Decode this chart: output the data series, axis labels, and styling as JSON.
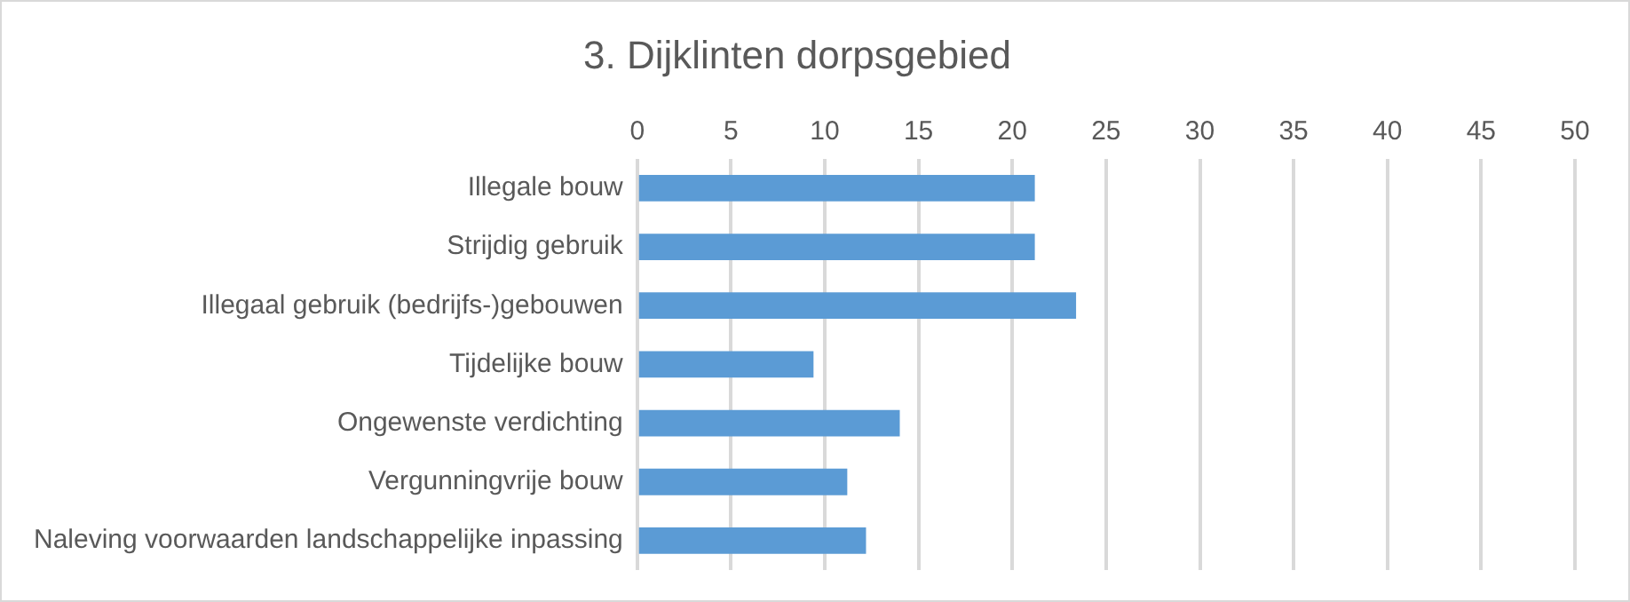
{
  "chart_data": {
    "type": "bar",
    "orientation": "horizontal",
    "title": "3. Dijklinten dorpsgebied",
    "categories": [
      "Illegale bouw",
      "Strijdig gebruik",
      "Illegaal gebruik (bedrijfs-)gebouwen",
      "Tijdelijke bouw",
      "Ongewenste verdichting",
      "Vergunningvrije bouw",
      "Naleving voorwaarden landschappelijke inpassing"
    ],
    "values": [
      21.2,
      21.2,
      23.4,
      9.4,
      14,
      11.2,
      12.2
    ],
    "color": "#5b9bd5",
    "xlim": [
      0,
      50
    ],
    "xticks": [
      0,
      5,
      10,
      15,
      20,
      25,
      30,
      35,
      40,
      45,
      50
    ],
    "grid": "x",
    "legend": false
  }
}
